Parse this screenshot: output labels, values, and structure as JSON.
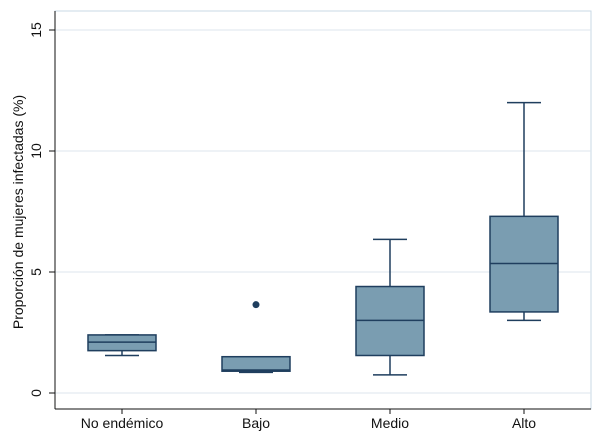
{
  "chart_data": {
    "type": "boxplot",
    "title": "",
    "xlabel": "",
    "ylabel": "Proporción de mujeres infectadas (%)",
    "ylim": [
      0,
      15
    ],
    "yticks": [
      0,
      5,
      10,
      15
    ],
    "grid": "horizontal",
    "legend": "none",
    "categories": [
      "No endémico",
      "Bajo",
      "Medio",
      "Alto"
    ],
    "boxes": [
      {
        "category": "No endémico",
        "whisker_low": 1.55,
        "q1": 1.75,
        "median": 2.1,
        "q3": 2.4,
        "whisker_high": 2.4,
        "outliers": []
      },
      {
        "category": "Bajo",
        "whisker_low": 0.85,
        "q1": 0.9,
        "median": 0.95,
        "q3": 1.5,
        "whisker_high": 1.5,
        "outliers": [
          3.65
        ]
      },
      {
        "category": "Medio",
        "whisker_low": 0.75,
        "q1": 1.55,
        "median": 3.0,
        "q3": 4.4,
        "whisker_high": 6.35,
        "outliers": []
      },
      {
        "category": "Alto",
        "whisker_low": 3.0,
        "q1": 3.35,
        "median": 5.35,
        "q3": 7.3,
        "whisker_high": 12.0,
        "outliers": []
      }
    ],
    "colors": {
      "box_fill": "#7a9db1",
      "box_stroke": "#1f3e5e",
      "grid": "#dde6ee",
      "frame": "#c9d9e6",
      "axis": "#111111"
    }
  }
}
